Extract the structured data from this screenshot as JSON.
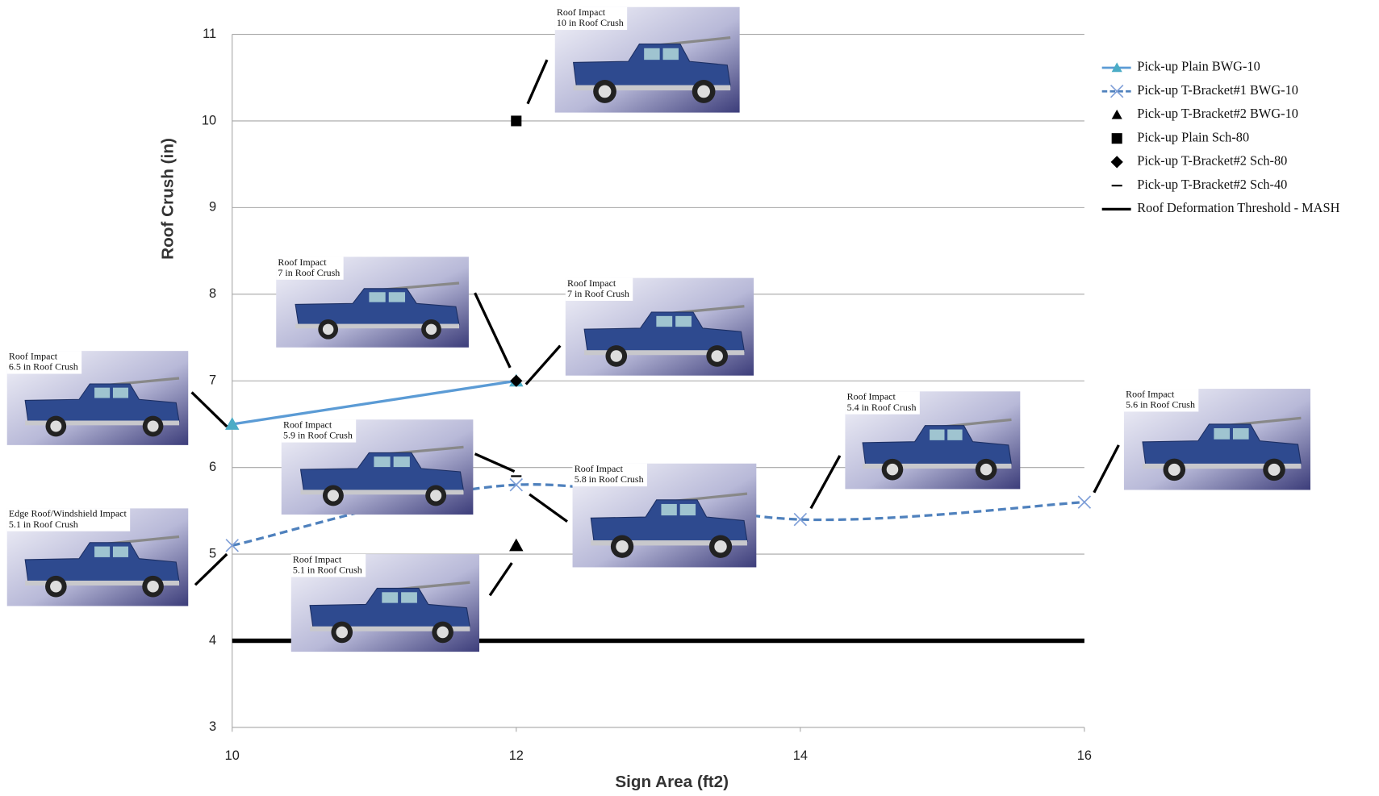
{
  "chart_data": {
    "type": "line",
    "x_label": "Sign Area (ft2)",
    "y_label": "Roof Crush (in)",
    "xlim": [
      10,
      16
    ],
    "xticks": [
      10,
      12,
      14,
      16
    ],
    "ylim": [
      3,
      11
    ],
    "yticks": [
      3,
      4,
      5,
      6,
      7,
      8,
      9,
      10,
      11
    ],
    "grid": true,
    "series": [
      {
        "name": "Pick-up Plain BWG-10",
        "color": "#5b9bd5",
        "marker": "triangle",
        "marker_color": "#4bacc6",
        "line": "solid",
        "x": [
          10,
          12
        ],
        "values": [
          6.5,
          7
        ]
      },
      {
        "name": "Pick-up T-Bracket#1 BWG-10",
        "color": "#4f81bd",
        "marker": "x",
        "marker_color": "#7f9fd8",
        "line": "dashed-smooth",
        "x": [
          10,
          12,
          14,
          16
        ],
        "values": [
          5.1,
          5.8,
          5.4,
          5.6
        ]
      },
      {
        "name": "Pick-up T-Bracket#2 BWG-10",
        "color": "#000000",
        "marker": "triangle",
        "marker_color": "#000000",
        "line": "none",
        "x": [
          12
        ],
        "values": [
          5.1
        ]
      },
      {
        "name": "Pick-up Plain Sch-80",
        "color": "#000000",
        "marker": "square",
        "marker_color": "#000000",
        "line": "none",
        "x": [
          12
        ],
        "values": [
          10
        ]
      },
      {
        "name": "Pick-up T-Bracket#2 Sch-80",
        "color": "#000000",
        "marker": "diamond",
        "marker_color": "#000000",
        "line": "none",
        "x": [
          12
        ],
        "values": [
          7
        ]
      },
      {
        "name": "Pick-up T-Bracket#2 Sch-40",
        "color": "#000000",
        "marker": "dash",
        "marker_color": "#000000",
        "line": "none",
        "x": [
          12
        ],
        "values": [
          5.9
        ]
      },
      {
        "name": "Roof Deformation Threshold - MASH",
        "color": "#000000",
        "marker": "none",
        "marker_color": "#000000",
        "line": "thick",
        "x": [
          10,
          16
        ],
        "values": [
          4,
          4
        ]
      }
    ],
    "annotations": [
      {
        "lines": [
          "Roof Impact",
          "10 in Roof Crush"
        ]
      },
      {
        "lines": [
          "Roof Impact",
          "7 in Roof Crush"
        ]
      },
      {
        "lines": [
          "Roof Impact",
          "7 in Roof Crush"
        ]
      },
      {
        "lines": [
          "Roof Impact",
          "6.5 in Roof Crush"
        ]
      },
      {
        "lines": [
          "Roof Impact",
          "5.9 in Roof Crush"
        ]
      },
      {
        "lines": [
          "Roof Impact",
          "5.8 in Roof Crush"
        ]
      },
      {
        "lines": [
          "Roof Impact",
          "5.4 in Roof Crush"
        ]
      },
      {
        "lines": [
          "Roof Impact",
          "5.6 in Roof Crush"
        ]
      },
      {
        "lines": [
          "Edge Roof/Windshield Impact",
          "5.1 in Roof Crush"
        ]
      },
      {
        "lines": [
          "Roof Impact",
          "5.1 in Roof Crush"
        ]
      }
    ]
  }
}
